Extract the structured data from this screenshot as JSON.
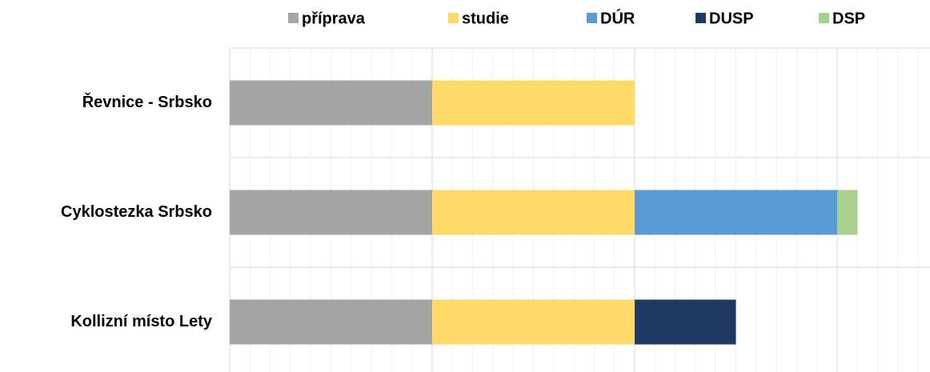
{
  "chart_data": {
    "type": "stacked_barh",
    "categories": [
      "Řevnice - Srbsko",
      "Cyklostezka Srbsko",
      "Kollizní místo Lety"
    ],
    "series": [
      {
        "name": "příprava",
        "color": "#a5a5a5",
        "values": [
          10,
          10,
          10
        ]
      },
      {
        "name": "studie",
        "color": "#ffd966",
        "values": [
          10,
          10,
          10
        ]
      },
      {
        "name": "DÚR",
        "color": "#5b9bd5",
        "values": [
          null,
          10,
          null
        ]
      },
      {
        "name": "DUSP",
        "color": "#203864",
        "values": [
          null,
          null,
          5
        ]
      },
      {
        "name": "DSP",
        "color": "#a9d18e",
        "values": [
          null,
          1,
          null
        ]
      }
    ],
    "xlim": [
      0,
      34
    ],
    "xticks": [
      0,
      10,
      20,
      30
    ],
    "xminorticks": [
      0,
      1,
      2,
      3,
      4,
      5,
      6,
      7,
      8,
      9,
      10,
      11,
      12,
      13,
      14,
      15,
      16,
      17,
      18,
      19,
      20,
      21,
      22,
      23,
      24,
      25,
      26,
      27,
      28,
      29,
      30,
      31,
      32,
      33,
      34
    ],
    "grid": true,
    "legend": "top"
  }
}
